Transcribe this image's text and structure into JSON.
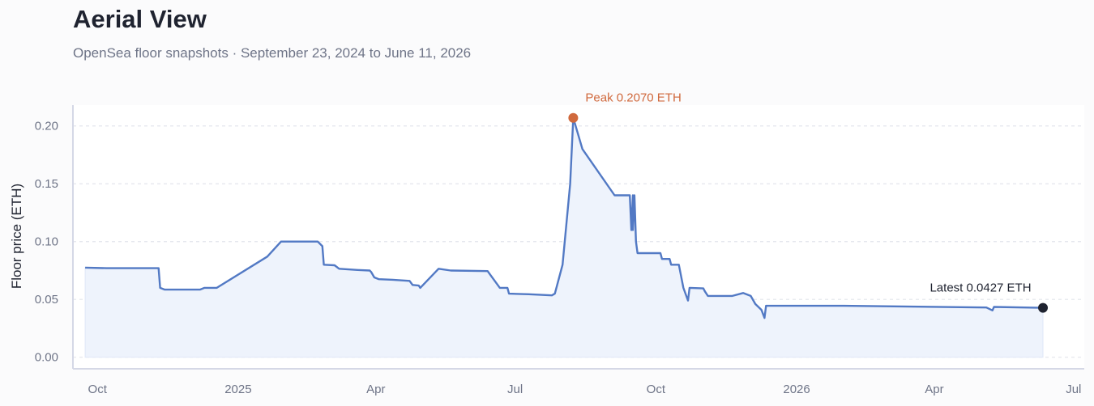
{
  "header": {
    "title": "Aerial View",
    "subtitle": "OpenSea floor snapshots · September 23, 2024 to June 11, 2026"
  },
  "chart_data": {
    "type": "line",
    "ylabel": "Floor price (ETH)",
    "ylim": [
      -0.01,
      0.218
    ],
    "xlim": [
      "2024-09-15",
      "2026-07-08"
    ],
    "y_ticks": [
      0.0,
      0.05,
      0.1,
      0.15,
      0.2
    ],
    "y_tick_labels": [
      "0.00",
      "0.05",
      "0.10",
      "0.15",
      "0.20"
    ],
    "x_ticks": [
      {
        "date": "2024-10-01",
        "label": "Oct"
      },
      {
        "date": "2025-01-01",
        "label": "2025"
      },
      {
        "date": "2025-04-01",
        "label": "Apr"
      },
      {
        "date": "2025-07-01",
        "label": "Jul"
      },
      {
        "date": "2025-10-01",
        "label": "Oct"
      },
      {
        "date": "2026-01-01",
        "label": "2026"
      },
      {
        "date": "2026-04-01",
        "label": "Apr"
      },
      {
        "date": "2026-07-01",
        "label": "Jul"
      }
    ],
    "grid": "horizontal dashed",
    "line_color": "#5279c4",
    "fill_color": "#eef3fc",
    "peak": {
      "date": "2025-08-08",
      "value": 0.207,
      "label": "Peak 0.2070 ETH",
      "color": "#d0693d"
    },
    "latest": {
      "date": "2026-06-11",
      "value": 0.0427,
      "label": "Latest 0.0427 ETH",
      "color": "#1f2330"
    },
    "series": [
      {
        "points": [
          [
            "2024-09-23",
            0.0775
          ],
          [
            "2024-10-07",
            0.077
          ],
          [
            "2024-11-10",
            0.077
          ],
          [
            "2024-11-11",
            0.06
          ],
          [
            "2024-11-14",
            0.0585
          ],
          [
            "2024-12-07",
            0.0585
          ],
          [
            "2024-12-10",
            0.06
          ],
          [
            "2024-12-18",
            0.06
          ],
          [
            "2025-01-20",
            0.087
          ],
          [
            "2025-01-29",
            0.1
          ],
          [
            "2025-02-22",
            0.1
          ],
          [
            "2025-02-25",
            0.096
          ],
          [
            "2025-02-26",
            0.08
          ],
          [
            "2025-03-05",
            0.0795
          ],
          [
            "2025-03-08",
            0.0765
          ],
          [
            "2025-03-20",
            0.0755
          ],
          [
            "2025-03-28",
            0.075
          ],
          [
            "2025-03-29",
            0.0735
          ],
          [
            "2025-03-31",
            0.069
          ],
          [
            "2025-04-03",
            0.0675
          ],
          [
            "2025-04-12",
            0.067
          ],
          [
            "2025-04-23",
            0.066
          ],
          [
            "2025-04-25",
            0.0625
          ],
          [
            "2025-04-29",
            0.062
          ],
          [
            "2025-04-30",
            0.06
          ],
          [
            "2025-05-12",
            0.0765
          ],
          [
            "2025-05-20",
            0.075
          ],
          [
            "2025-06-13",
            0.0745
          ],
          [
            "2025-06-21",
            0.06
          ],
          [
            "2025-06-26",
            0.06
          ],
          [
            "2025-06-27",
            0.055
          ],
          [
            "2025-07-10",
            0.0545
          ],
          [
            "2025-07-25",
            0.0535
          ],
          [
            "2025-07-27",
            0.055
          ],
          [
            "2025-08-01",
            0.08
          ],
          [
            "2025-08-06",
            0.15
          ],
          [
            "2025-08-08",
            0.207
          ],
          [
            "2025-08-14",
            0.18
          ],
          [
            "2025-09-04",
            0.14
          ],
          [
            "2025-09-14",
            0.14
          ],
          [
            "2025-09-15",
            0.11
          ],
          [
            "2025-09-16",
            0.14
          ],
          [
            "2025-09-16",
            0.11
          ],
          [
            "2025-09-17",
            0.14
          ],
          [
            "2025-09-18",
            0.1
          ],
          [
            "2025-09-19",
            0.09
          ],
          [
            "2025-10-04",
            0.09
          ],
          [
            "2025-10-05",
            0.085
          ],
          [
            "2025-10-10",
            0.085
          ],
          [
            "2025-10-11",
            0.08
          ],
          [
            "2025-10-16",
            0.08
          ],
          [
            "2025-10-19",
            0.06
          ],
          [
            "2025-10-22",
            0.049
          ],
          [
            "2025-10-23",
            0.06
          ],
          [
            "2025-11-01",
            0.0595
          ],
          [
            "2025-11-02",
            0.057
          ],
          [
            "2025-11-04",
            0.053
          ],
          [
            "2025-11-20",
            0.053
          ],
          [
            "2025-11-27",
            0.0555
          ],
          [
            "2025-12-02",
            0.053
          ],
          [
            "2025-12-05",
            0.046
          ],
          [
            "2025-12-09",
            0.041
          ],
          [
            "2025-12-11",
            0.034
          ],
          [
            "2025-12-12",
            0.0445
          ],
          [
            "2026-02-01",
            0.0445
          ],
          [
            "2026-05-05",
            0.043
          ],
          [
            "2026-05-09",
            0.0405
          ],
          [
            "2026-05-10",
            0.0435
          ],
          [
            "2026-06-11",
            0.0427
          ]
        ]
      }
    ]
  }
}
